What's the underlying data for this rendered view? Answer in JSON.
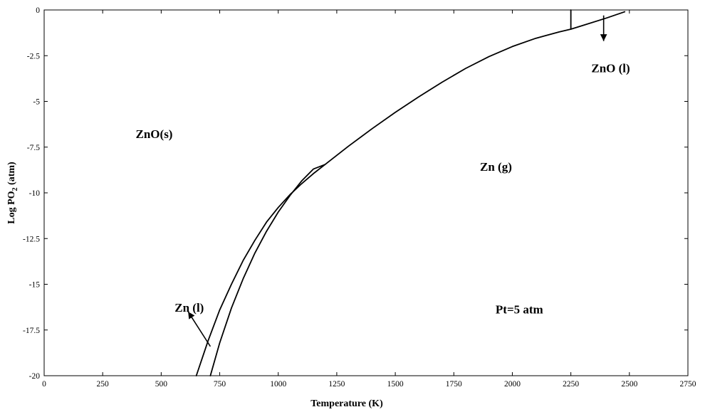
{
  "chart_data": {
    "type": "line",
    "title": "",
    "xlabel": "Temperature (K)",
    "ylabel_main": "Log PO",
    "ylabel_sub": "2",
    "ylabel_unit": " (atm)",
    "xlim": [
      0,
      2750
    ],
    "ylim": [
      -20,
      0
    ],
    "xticks": [
      0,
      250,
      500,
      750,
      1000,
      1250,
      1500,
      1750,
      2000,
      2250,
      2500,
      2750
    ],
    "yticks": [
      0,
      -2.5,
      -5,
      -7.5,
      -10,
      -12.5,
      -15,
      -17.5,
      -20
    ],
    "ytick_labels": [
      "0",
      "-2.5",
      "-5",
      "-7.5",
      "-10",
      "-12.5",
      "-15",
      "-17.5",
      "-20"
    ],
    "grid": false,
    "series": [
      {
        "x": [
          650,
          700,
          750,
          800,
          850,
          900,
          950,
          1000,
          1050,
          1100,
          1150,
          1200,
          1300,
          1400,
          1500,
          1600,
          1700,
          1800,
          1900,
          2000,
          2100,
          2200,
          2250,
          2300,
          2400,
          2480
        ],
        "y": [
          -20,
          -18.1,
          -16.4,
          -15.0,
          -13.7,
          -12.6,
          -11.6,
          -10.8,
          -10.1,
          -9.5,
          -8.95,
          -8.45,
          -7.45,
          -6.5,
          -5.6,
          -4.75,
          -3.95,
          -3.2,
          -2.55,
          -2.0,
          -1.55,
          -1.2,
          -1.05,
          -0.85,
          -0.45,
          -0.1
        ]
      },
      {
        "x": [
          710,
          750,
          800,
          850,
          900,
          950,
          1000,
          1050,
          1100,
          1150,
          1200
        ],
        "y": [
          -20,
          -18.2,
          -16.3,
          -14.7,
          -13.3,
          -12.1,
          -11.05,
          -10.15,
          -9.35,
          -8.7,
          -8.45
        ]
      },
      {
        "x": [
          2250,
          2250
        ],
        "y": [
          -1.05,
          0
        ]
      }
    ],
    "annotations": [
      {
        "text": "ZnO(s)",
        "x": 470,
        "y": -7
      },
      {
        "text": "Zn (g)",
        "x": 1930,
        "y": -8.8
      },
      {
        "text": "ZnO (l)",
        "x": 2420,
        "y": -3.4
      },
      {
        "text": "Zn (l)",
        "x": 620,
        "y": -16.5
      },
      {
        "text": "Pt=5 atm",
        "x": 2030,
        "y": -16.6
      }
    ],
    "arrows": [
      {
        "from": [
          710,
          -18.4
        ],
        "to": [
          615,
          -16.5
        ]
      },
      {
        "from": [
          2390,
          -0.3
        ],
        "to": [
          2390,
          -1.7
        ]
      }
    ]
  }
}
